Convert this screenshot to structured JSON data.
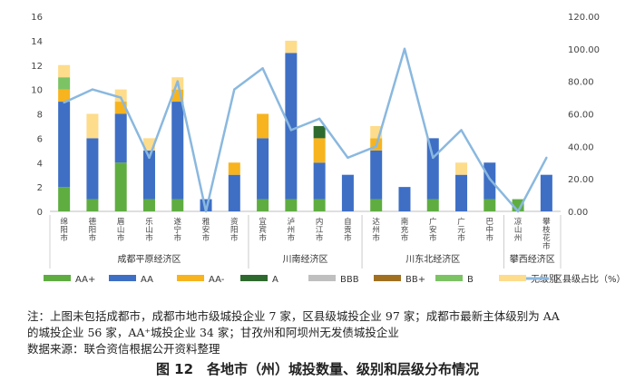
{
  "chart_data": {
    "type": "bar",
    "stacked": true,
    "categories": [
      "绵阳市",
      "德阳市",
      "眉山市",
      "乐山市",
      "遂宁市",
      "雅安市",
      "资阳市",
      "宜宾市",
      "泸州市",
      "内江市",
      "自贡市",
      "达州市",
      "南充市",
      "广安市",
      "广元市",
      "巴中市",
      "凉山州",
      "攀枝花市"
    ],
    "series": [
      {
        "name": "AA+",
        "color": "#5fad41",
        "values": [
          2,
          1,
          4,
          1,
          1,
          0,
          0,
          1,
          1,
          1,
          0,
          1,
          0,
          1,
          0,
          1,
          1,
          0
        ]
      },
      {
        "name": "AA",
        "color": "#3e6fc5",
        "values": [
          7,
          5,
          4,
          4,
          8,
          1,
          3,
          5,
          12,
          3,
          3,
          4,
          2,
          5,
          3,
          3,
          0,
          3
        ]
      },
      {
        "name": "AA-",
        "color": "#f7b41e",
        "values": [
          1,
          0,
          1,
          0,
          1,
          0,
          1,
          2,
          0,
          2,
          0,
          1,
          0,
          0,
          0,
          0,
          0,
          0
        ]
      },
      {
        "name": "A",
        "color": "#2e6a2e",
        "values": [
          0,
          0,
          0,
          0,
          0,
          0,
          0,
          0,
          0,
          1,
          0,
          0,
          0,
          0,
          0,
          0,
          0,
          0
        ]
      },
      {
        "name": "BBB",
        "color": "#bfbfbf",
        "values": [
          0,
          0,
          0,
          0,
          0,
          0,
          0,
          0,
          0,
          0,
          0,
          0,
          0,
          0,
          0,
          0,
          0,
          0
        ]
      },
      {
        "name": "BB+",
        "color": "#a07020",
        "values": [
          0,
          0,
          0,
          0,
          0,
          0,
          0,
          0,
          0,
          0,
          0,
          0,
          0,
          0,
          0,
          0,
          0,
          0
        ]
      },
      {
        "name": "B",
        "color": "#7cc364",
        "values": [
          1,
          0,
          0,
          0,
          0,
          0,
          0,
          0,
          0,
          0,
          0,
          0,
          0,
          0,
          0,
          0,
          0,
          0
        ]
      },
      {
        "name": "无级别",
        "color": "#fddc8b",
        "values": [
          1,
          2,
          1,
          1,
          1,
          0,
          0,
          0,
          1,
          0,
          0,
          1,
          0,
          0,
          1,
          0,
          0,
          0
        ]
      }
    ],
    "line": {
      "name": "区县级占比（%）",
      "color": "#8ab8df",
      "values": [
        67,
        75,
        70,
        33,
        80,
        0,
        75,
        88,
        50,
        57,
        33,
        40,
        100,
        33,
        50,
        20,
        0,
        33
      ]
    },
    "y_left": {
      "min": 0,
      "max": 16,
      "step": 2,
      "ticks": [
        "0",
        "2",
        "4",
        "6",
        "8",
        "10",
        "12",
        "14",
        "16"
      ]
    },
    "y_right": {
      "min": 0,
      "max": 120,
      "step": 20,
      "ticks": [
        "0.00",
        "20.00",
        "40.00",
        "60.00",
        "80.00",
        "100.00",
        "120.00"
      ]
    },
    "zones": [
      {
        "label": "成都平原经济区",
        "from": 0,
        "to": 6
      },
      {
        "label": "川南经济区",
        "from": 7,
        "to": 10
      },
      {
        "label": "川东北经济区",
        "from": 11,
        "to": 15
      },
      {
        "label": "攀西经济区",
        "from": 16,
        "to": 17
      }
    ],
    "legend_position": "bottom"
  },
  "notes": [
    "注：上图未包括成都市，成都市地市级城投企业 7 家，区县级城投企业 97 家；成都市最新主体级别为 AA",
    "的城投企业 56 家，AA⁺城投企业 34 家；甘孜州和阿坝州无发债城投企业",
    "数据来源：联合资信根据公开资料整理"
  ],
  "caption": "图 12　各地市（州）城投数量、级别和层级分布情况"
}
